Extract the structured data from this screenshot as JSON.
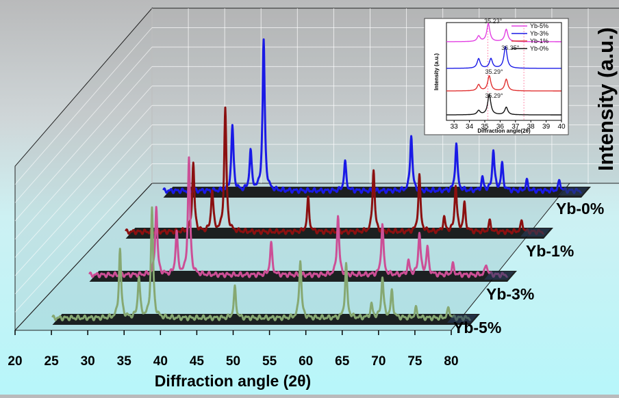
{
  "chart_data": {
    "type": "line",
    "subtype": "3d-waterfall",
    "xlabel": "Diffraction angle (2θ)",
    "zlabel": "Intensity (a.u.)",
    "xlim": [
      20,
      80
    ],
    "xticks": [
      "20",
      "25",
      "30",
      "35",
      "40",
      "45",
      "50",
      "55",
      "60",
      "65",
      "70",
      "75",
      "80"
    ],
    "categories": [
      "Yb-0%",
      "Yb-1%",
      "Yb-3%",
      "Yb-5%"
    ],
    "colors": {
      "Yb-0%": "#1a1ae6",
      "Yb-1%": "#8b1010",
      "Yb-3%": "#cc4f96",
      "Yb-5%": "#86a872"
    },
    "series": [
      {
        "name": "Yb-0%",
        "color": "#1a1ae6",
        "peaks": [
          [
            32.0,
            95
          ],
          [
            34.5,
            58
          ],
          [
            36.3,
            220
          ],
          [
            47.5,
            42
          ],
          [
            56.6,
            82
          ],
          [
            62.8,
            70
          ],
          [
            66.4,
            18
          ],
          [
            67.9,
            60
          ],
          [
            69.1,
            38
          ],
          [
            72.5,
            14
          ],
          [
            77.0,
            15
          ]
        ]
      },
      {
        "name": "Yb-1%",
        "color": "#8b1010",
        "peaks": [
          [
            31.8,
            100
          ],
          [
            34.4,
            60
          ],
          [
            36.2,
            180
          ],
          [
            47.6,
            48
          ],
          [
            56.6,
            92
          ],
          [
            62.9,
            82
          ],
          [
            66.3,
            20
          ],
          [
            67.9,
            68
          ],
          [
            69.1,
            40
          ],
          [
            72.6,
            15
          ],
          [
            77.0,
            16
          ]
        ]
      },
      {
        "name": "Yb-3%",
        "color": "#cc4f96",
        "peaks": [
          [
            31.7,
            100
          ],
          [
            34.5,
            62
          ],
          [
            36.2,
            170
          ],
          [
            47.5,
            46
          ],
          [
            56.7,
            86
          ],
          [
            62.8,
            75
          ],
          [
            66.4,
            19
          ],
          [
            67.9,
            62
          ],
          [
            69.0,
            40
          ],
          [
            72.5,
            15
          ],
          [
            77.1,
            16
          ]
        ]
      },
      {
        "name": "Yb-5%",
        "color": "#86a872",
        "peaks": [
          [
            31.8,
            100
          ],
          [
            34.4,
            60
          ],
          [
            36.2,
            160
          ],
          [
            47.6,
            44
          ],
          [
            56.6,
            85
          ],
          [
            62.9,
            78
          ],
          [
            66.4,
            19
          ],
          [
            67.9,
            60
          ],
          [
            69.2,
            38
          ],
          [
            72.5,
            14
          ],
          [
            77.0,
            15
          ]
        ]
      }
    ],
    "inset": {
      "type": "line",
      "xlabel": "Diffraction angle(2θ)",
      "ylabel": "Intensity (a.u.)",
      "xlim": [
        32.5,
        40
      ],
      "xticks": [
        "33",
        "34",
        "35",
        "36",
        "37",
        "38",
        "39",
        "40"
      ],
      "legend_position": "top-right",
      "legend": [
        "Yb-5%",
        "Yb-3%",
        "Yb-1%",
        "Yb-0%"
      ],
      "colors": {
        "Yb-5%": "#e23ee2",
        "Yb-3%": "#1a1ae6",
        "Yb-1%": "#e03030",
        "Yb-0%": "#111111"
      },
      "annotations": [
        {
          "series": "Yb-5%",
          "text": "35.23°",
          "x": 35.23
        },
        {
          "series": "Yb-3%",
          "text": "36.35°",
          "x": 36.35
        },
        {
          "series": "Yb-1%",
          "text": "35.29°",
          "x": 35.29
        },
        {
          "series": "Yb-0%",
          "text": "35.29°",
          "x": 35.29
        }
      ]
    }
  }
}
